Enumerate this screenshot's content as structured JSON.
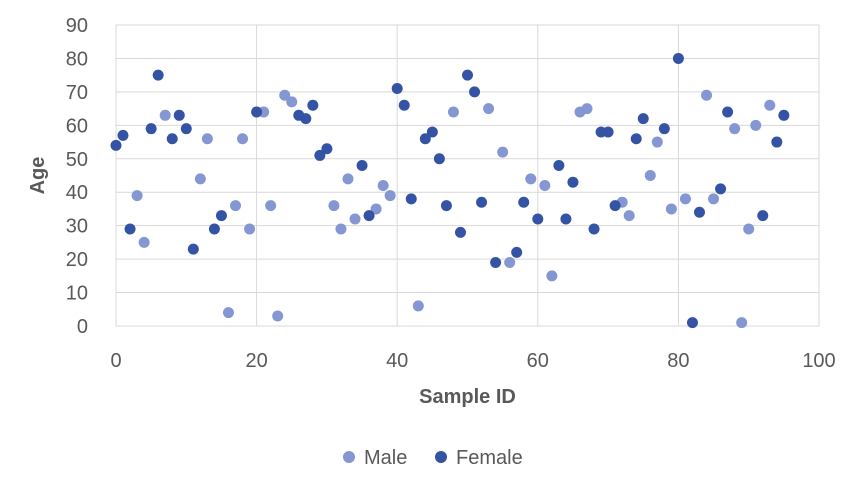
{
  "chart_data": {
    "type": "scatter",
    "title": "",
    "xlabel": "Sample ID",
    "ylabel": "Age",
    "xlim": [
      0,
      100
    ],
    "ylim": [
      0,
      90
    ],
    "x_ticks": [
      0,
      20,
      40,
      60,
      80,
      100
    ],
    "y_ticks": [
      0,
      10,
      20,
      30,
      40,
      50,
      60,
      70,
      80,
      90
    ],
    "grid": true,
    "legend_position": "bottom",
    "series": [
      {
        "name": "Male",
        "color": "#8497d2",
        "points": [
          [
            3,
            39
          ],
          [
            4,
            25
          ],
          [
            7,
            63
          ],
          [
            12,
            44
          ],
          [
            13,
            56
          ],
          [
            16,
            4
          ],
          [
            17,
            36
          ],
          [
            18,
            56
          ],
          [
            19,
            29
          ],
          [
            21,
            64
          ],
          [
            22,
            36
          ],
          [
            23,
            3
          ],
          [
            24,
            69
          ],
          [
            25,
            67
          ],
          [
            31,
            36
          ],
          [
            32,
            29
          ],
          [
            33,
            44
          ],
          [
            34,
            32
          ],
          [
            37,
            35
          ],
          [
            38,
            42
          ],
          [
            39,
            39
          ],
          [
            43,
            6
          ],
          [
            48,
            64
          ],
          [
            53,
            65
          ],
          [
            55,
            52
          ],
          [
            56,
            19
          ],
          [
            59,
            44
          ],
          [
            61,
            42
          ],
          [
            62,
            15
          ],
          [
            66,
            64
          ],
          [
            67,
            65
          ],
          [
            72,
            37
          ],
          [
            73,
            33
          ],
          [
            76,
            45
          ],
          [
            77,
            55
          ],
          [
            79,
            35
          ],
          [
            81,
            38
          ],
          [
            84,
            69
          ],
          [
            85,
            38
          ],
          [
            88,
            59
          ],
          [
            89,
            1
          ],
          [
            90,
            29
          ],
          [
            91,
            60
          ],
          [
            93,
            66
          ]
        ]
      },
      {
        "name": "Female",
        "color": "#3553a5",
        "points": [
          [
            0,
            54
          ],
          [
            1,
            57
          ],
          [
            2,
            29
          ],
          [
            5,
            59
          ],
          [
            6,
            75
          ],
          [
            8,
            56
          ],
          [
            9,
            63
          ],
          [
            10,
            59
          ],
          [
            11,
            23
          ],
          [
            14,
            29
          ],
          [
            15,
            33
          ],
          [
            20,
            64
          ],
          [
            26,
            63
          ],
          [
            27,
            62
          ],
          [
            28,
            66
          ],
          [
            29,
            51
          ],
          [
            30,
            53
          ],
          [
            35,
            48
          ],
          [
            36,
            33
          ],
          [
            40,
            71
          ],
          [
            41,
            66
          ],
          [
            42,
            38
          ],
          [
            44,
            56
          ],
          [
            45,
            58
          ],
          [
            46,
            50
          ],
          [
            47,
            36
          ],
          [
            49,
            28
          ],
          [
            50,
            75
          ],
          [
            51,
            70
          ],
          [
            52,
            37
          ],
          [
            54,
            19
          ],
          [
            57,
            22
          ],
          [
            58,
            37
          ],
          [
            60,
            32
          ],
          [
            63,
            48
          ],
          [
            64,
            32
          ],
          [
            65,
            43
          ],
          [
            68,
            29
          ],
          [
            69,
            58
          ],
          [
            70,
            58
          ],
          [
            71,
            36
          ],
          [
            74,
            56
          ],
          [
            75,
            62
          ],
          [
            78,
            59
          ],
          [
            80,
            80
          ],
          [
            82,
            1
          ],
          [
            83,
            34
          ],
          [
            86,
            41
          ],
          [
            87,
            64
          ],
          [
            92,
            33
          ],
          [
            94,
            55
          ],
          [
            95,
            63
          ]
        ]
      }
    ]
  }
}
